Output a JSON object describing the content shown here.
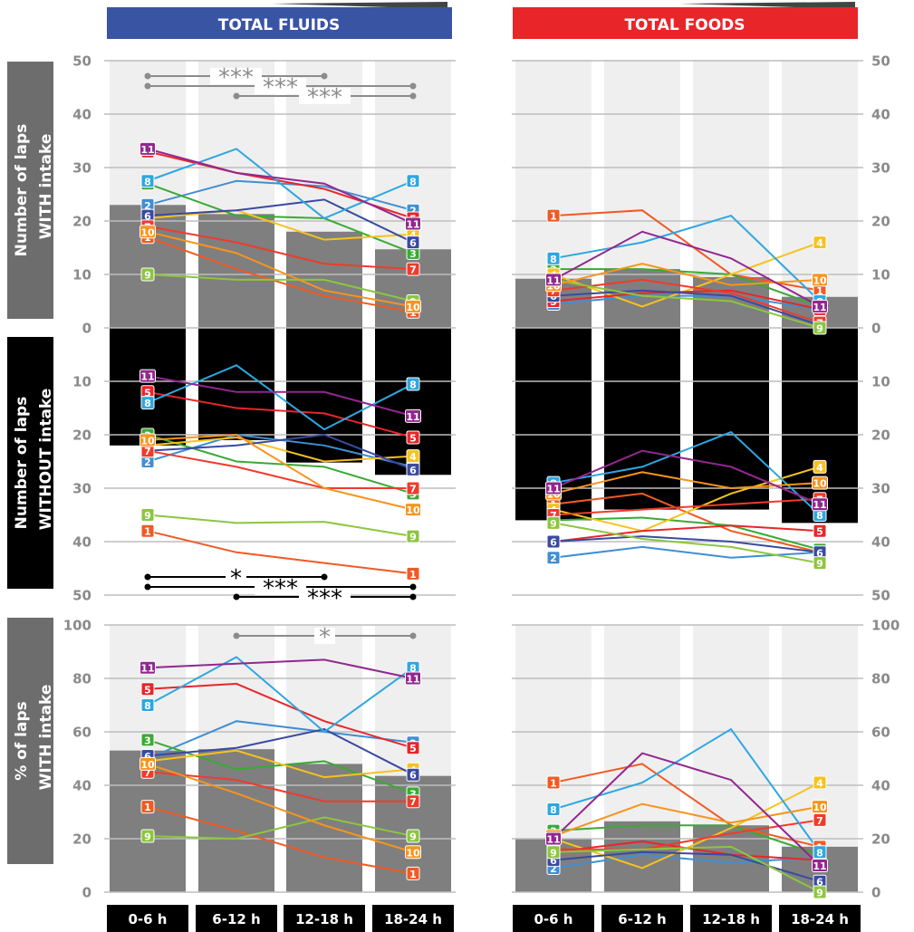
{
  "colors": {
    "1": "#f05a24",
    "2": "#3f8fd2",
    "3": "#3aaa35",
    "4": "#f7c21e",
    "5": "#e8262a",
    "6": "#3a4aa0",
    "7": "#ef3b2c",
    "8": "#2ea7e0",
    "9": "#8cc63f",
    "10": "#f7941d",
    "11": "#92278f",
    "fluids_header": "#3a54a4",
    "foods_header": "#e8262a",
    "bar_with": "#7f7f7f",
    "bar_without": "#000000",
    "panel": "#efefef",
    "sig_gray": "#8c8c8c",
    "sig_black": "#000000",
    "label_gray": "#6d6d6d"
  },
  "headers": {
    "fluids": "TOTAL FLUIDS",
    "foods": "TOTAL FOODS"
  },
  "row_labels": {
    "with_line1": "Number of laps",
    "with_line2": "WITH intake",
    "without_line1": "Number of laps",
    "without_line2": "WITHOUT intake",
    "pct_line1": "% of laps",
    "pct_line2": "WITH intake"
  },
  "chart_data": {
    "type": "line",
    "categories": [
      "0-6 h",
      "6-12 h",
      "12-18 h",
      "18-24 h"
    ],
    "axes": {
      "with_ticks": [
        "50",
        "40",
        "30",
        "20",
        "10",
        "0"
      ],
      "without_ticks": [
        "10",
        "20",
        "30",
        "40",
        "50"
      ],
      "pct_ticks": [
        "100",
        "80",
        "60",
        "40",
        "20",
        "0"
      ]
    },
    "panels": {
      "fluids_with": {
        "bars": [
          23,
          21.3,
          18,
          14.7
        ],
        "series": [
          {
            "name": "1",
            "values": [
              17,
              11,
              6,
              3
            ]
          },
          {
            "name": "2",
            "values": [
              23,
              27.5,
              26.5,
              22
            ]
          },
          {
            "name": "3",
            "values": [
              27,
              21,
              20.5,
              14
            ]
          },
          {
            "name": "4",
            "values": [
              20.5,
              22,
              16.5,
              17.5
            ]
          },
          {
            "name": "5",
            "values": [
              33,
              29,
              26,
              20.5
            ]
          },
          {
            "name": "6",
            "values": [
              21,
              22,
              24,
              16
            ]
          },
          {
            "name": "7",
            "values": [
              19,
              16,
              12,
              11
            ]
          },
          {
            "name": "8",
            "values": [
              27.5,
              33.5,
              20.5,
              27.5
            ]
          },
          {
            "name": "9",
            "values": [
              10,
              9,
              9,
              5
            ]
          },
          {
            "name": "10",
            "values": [
              18,
              14,
              7,
              4
            ]
          },
          {
            "name": "11",
            "values": [
              33.5,
              29,
              27,
              19.5
            ]
          }
        ],
        "significance": [
          {
            "from": 0,
            "to": 2,
            "label": "***"
          },
          {
            "from": 0,
            "to": 3,
            "label": "***"
          },
          {
            "from": 1,
            "to": 3,
            "label": "***"
          }
        ]
      },
      "fluids_without": {
        "bars": [
          22,
          21,
          25.2,
          27.5
        ],
        "series": [
          {
            "name": "1",
            "values": [
              38,
              42,
              44,
              46
            ]
          },
          {
            "name": "2",
            "values": [
              25,
              20,
              22,
              26
            ]
          },
          {
            "name": "3",
            "values": [
              20,
              25,
              26,
              31
            ]
          },
          {
            "name": "4",
            "values": [
              22,
              20.5,
              25,
              24
            ]
          },
          {
            "name": "5",
            "values": [
              12,
              15,
              16,
              20.5
            ]
          },
          {
            "name": "6",
            "values": [
              23,
              22,
              20,
              26.5
            ]
          },
          {
            "name": "7",
            "values": [
              23,
              26,
              30,
              30
            ]
          },
          {
            "name": "8",
            "values": [
              14,
              7,
              19,
              10.5
            ]
          },
          {
            "name": "9",
            "values": [
              35,
              36.5,
              36.3,
              39
            ]
          },
          {
            "name": "10",
            "values": [
              21,
              20,
              30,
              34
            ]
          },
          {
            "name": "11",
            "values": [
              9,
              12,
              12,
              16.5
            ]
          }
        ],
        "significance": [
          {
            "from": 0,
            "to": 2,
            "label": "*"
          },
          {
            "from": 0,
            "to": 3,
            "label": "***"
          },
          {
            "from": 1,
            "to": 3,
            "label": "***"
          }
        ]
      },
      "fluids_pct": {
        "bars": [
          53,
          53.5,
          48,
          43.5
        ],
        "series": [
          {
            "name": "1",
            "values": [
              32,
              23,
              13,
              7
            ]
          },
          {
            "name": "2",
            "values": [
              50,
              64,
              60,
              56
            ]
          },
          {
            "name": "3",
            "values": [
              57,
              46,
              49,
              37
            ]
          },
          {
            "name": "4",
            "values": [
              49,
              53,
              43,
              46
            ]
          },
          {
            "name": "5",
            "values": [
              76,
              78,
              64,
              54
            ]
          },
          {
            "name": "6",
            "values": [
              51,
              54,
              61,
              44
            ]
          },
          {
            "name": "7",
            "values": [
              45,
              42,
              34,
              34
            ]
          },
          {
            "name": "8",
            "values": [
              70,
              88,
              60,
              84
            ]
          },
          {
            "name": "9",
            "values": [
              21,
              20,
              28,
              21
            ]
          },
          {
            "name": "10",
            "values": [
              48,
              37,
              25,
              15
            ]
          },
          {
            "name": "11",
            "values": [
              84,
              85.5,
              87,
              80
            ]
          }
        ],
        "significance": [
          {
            "from": 1,
            "to": 3,
            "label": "*"
          }
        ]
      },
      "foods_with": {
        "bars": [
          9.2,
          11,
          9.5,
          5.8
        ],
        "series": [
          {
            "name": "1",
            "values": [
              21,
              22,
              10,
              7
            ]
          },
          {
            "name": "2",
            "values": [
              4.5,
              6,
              6,
              3.5
            ]
          },
          {
            "name": "3",
            "values": [
              11,
              11,
              10,
              4
            ]
          },
          {
            "name": "4",
            "values": [
              10,
              4,
              10,
              16
            ]
          },
          {
            "name": "5",
            "values": [
              5,
              6.5,
              7,
              3.5
            ]
          },
          {
            "name": "6",
            "values": [
              6,
              7,
              6,
              0.5
            ]
          },
          {
            "name": "7",
            "values": [
              7,
              9,
              6.5,
              1
            ]
          },
          {
            "name": "8",
            "values": [
              13,
              16,
              21,
              5
            ]
          },
          {
            "name": "9",
            "values": [
              9,
              6,
              5,
              0
            ]
          },
          {
            "name": "10",
            "values": [
              8,
              12,
              8,
              9
            ]
          },
          {
            "name": "11",
            "values": [
              9,
              18,
              13,
              4
            ]
          }
        ],
        "significance": []
      },
      "foods_without": {
        "bars": [
          36,
          34,
          34,
          36.5
        ],
        "series": [
          {
            "name": "1",
            "values": [
              33,
              31,
              38,
              42
            ]
          },
          {
            "name": "2",
            "values": [
              43,
              41,
              43,
              42
            ]
          },
          {
            "name": "3",
            "values": [
              36,
              35.5,
              37,
              41.5
            ]
          },
          {
            "name": "4",
            "values": [
              34,
              38,
              31,
              26
            ]
          },
          {
            "name": "5",
            "values": [
              40,
              38,
              37,
              38
            ]
          },
          {
            "name": "6",
            "values": [
              40,
              39,
              40,
              42
            ]
          },
          {
            "name": "7",
            "values": [
              35,
              34,
              33,
              32
            ]
          },
          {
            "name": "8",
            "values": [
              29,
              26,
              19.5,
              35
            ]
          },
          {
            "name": "9",
            "values": [
              36.5,
              39.5,
              41,
              44
            ]
          },
          {
            "name": "10",
            "values": [
              31,
              27,
              30,
              29
            ]
          },
          {
            "name": "11",
            "values": [
              30,
              23,
              26,
              33
            ]
          }
        ],
        "significance": []
      },
      "foods_pct": {
        "bars": [
          20,
          26.5,
          25,
          17
        ],
        "series": [
          {
            "name": "1",
            "values": [
              41,
              48,
              25,
              17
            ]
          },
          {
            "name": "2",
            "values": [
              9,
              14,
              11,
              13
            ]
          },
          {
            "name": "3",
            "values": [
              23,
              25,
              25,
              14
            ]
          },
          {
            "name": "4",
            "values": [
              20,
              9,
              24,
              41
            ]
          },
          {
            "name": "5",
            "values": [
              15,
              19,
              14,
              12
            ]
          },
          {
            "name": "6",
            "values": [
              12,
              15,
              14,
              4
            ]
          },
          {
            "name": "7",
            "values": [
              16,
              16,
              22,
              27
            ]
          },
          {
            "name": "8",
            "values": [
              31,
              41,
              61,
              15
            ]
          },
          {
            "name": "9",
            "values": [
              15,
              16,
              17,
              0
            ]
          },
          {
            "name": "10",
            "values": [
              21,
              33,
              26,
              32
            ]
          },
          {
            "name": "11",
            "values": [
              20,
              52,
              42,
              10
            ]
          }
        ],
        "significance": []
      }
    }
  }
}
